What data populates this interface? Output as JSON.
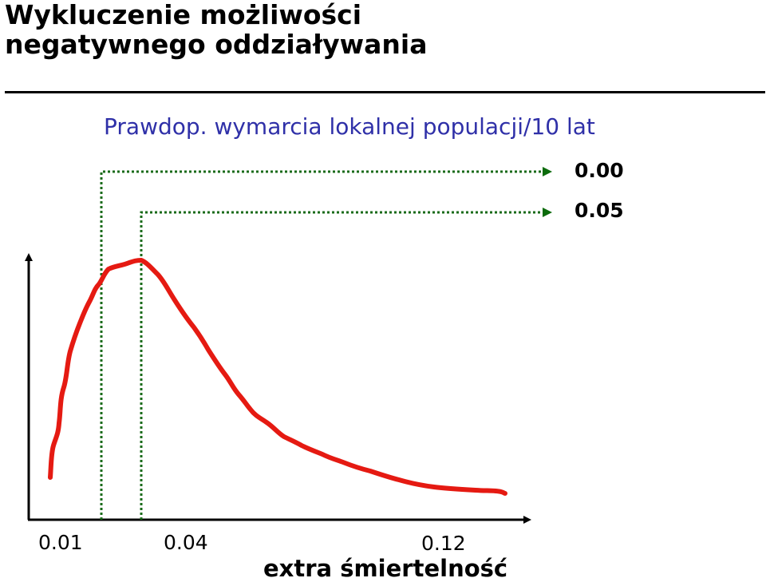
{
  "slide": {
    "title": "Wykluczenie możliwości\nnegatywnego oddziaływania"
  },
  "chart_data": {
    "type": "line",
    "subtitle": "Prawdop. wymarcia lokalnej populacji/10 lat",
    "xlabel": "extra śmiertelność",
    "x_ticks": [
      "0.01",
      "0.04",
      "0.12"
    ],
    "markers": [
      {
        "x": "0.01",
        "label": "0.00"
      },
      {
        "x": "0.04",
        "label": "0.05"
      }
    ],
    "colors": {
      "curve": "#e51a12",
      "guide": "#1a6b1a",
      "subtitle": "#2f30a8"
    }
  }
}
